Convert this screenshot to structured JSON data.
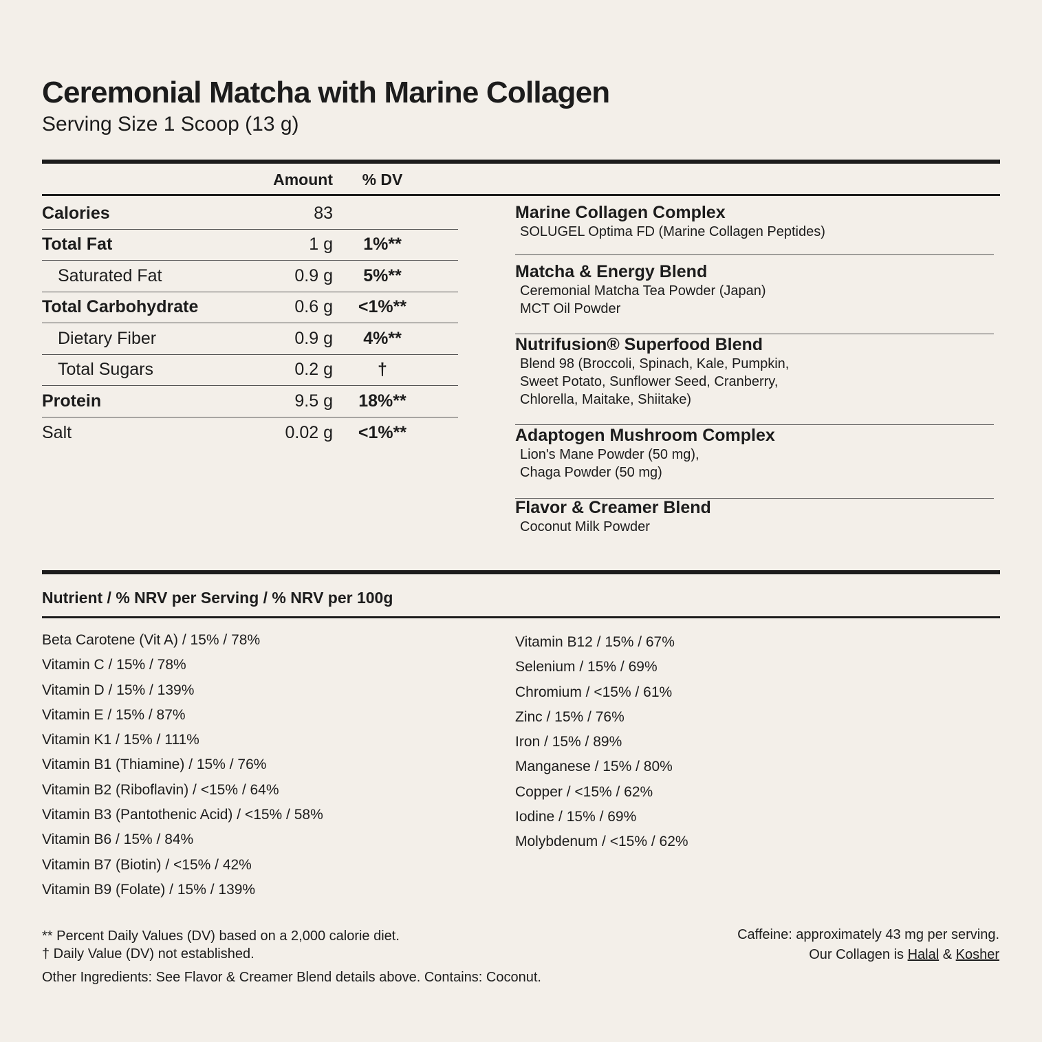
{
  "title": "Ceremonial Matcha with Marine Collagen",
  "serving_size": "Serving Size 1 Scoop (13 g)",
  "table": {
    "headers": {
      "amount": "Amount",
      "dv": "% DV"
    },
    "rows": [
      {
        "name": "Calories",
        "amount": "83",
        "dv": "",
        "style": "bold"
      },
      {
        "name": "Total Fat",
        "amount": "1 g",
        "dv": "1%**",
        "style": "bold"
      },
      {
        "name": "Saturated Fat",
        "amount": "0.9 g",
        "dv": "5%**",
        "style": "indent"
      },
      {
        "name": "Total Carbohydrate",
        "amount": "0.6 g",
        "dv": "<1%**",
        "style": "bold"
      },
      {
        "name": "Dietary Fiber",
        "amount": "0.9 g",
        "dv": "4%**",
        "style": "indent"
      },
      {
        "name": "Total Sugars",
        "amount": "0.2 g",
        "dv": "†",
        "style": "indent"
      },
      {
        "name": "Protein",
        "amount": "9.5 g",
        "dv": "18%**",
        "style": "bold"
      },
      {
        "name": "Salt",
        "amount": "0.02 g",
        "dv": "<1%**",
        "style": "plain"
      }
    ]
  },
  "blends": [
    {
      "title": "Marine Collagen Complex",
      "lines": [
        "SOLUGEL Optima FD (Marine Collagen Peptides)"
      ]
    },
    {
      "title": "Matcha & Energy Blend",
      "lines": [
        "Ceremonial Matcha Tea Powder (Japan)",
        "MCT Oil Powder"
      ]
    },
    {
      "title": "Nutrifusion® Superfood Blend",
      "lines": [
        "Blend 98 (Broccoli, Spinach, Kale, Pumpkin,",
        "Sweet Potato, Sunflower Seed, Cranberry,",
        "Chlorella, Maitake, Shiitake)"
      ]
    },
    {
      "title": "Adaptogen Mushroom Complex",
      "lines": [
        "Lion's Mane Powder (50 mg),",
        "Chaga Powder (50 mg)"
      ]
    },
    {
      "title": "Flavor & Creamer Blend",
      "lines": [
        "Coconut Milk Powder"
      ]
    }
  ],
  "nrv": {
    "heading": "Nutrient / % NRV per Serving / % NRV per 100g",
    "left": [
      "Beta Carotene (Vit A) / 15% / 78%",
      "Vitamin C / 15% / 78%",
      "Vitamin D / 15% / 139%",
      "Vitamin E / 15% / 87%",
      "Vitamin K1 / 15% / 111%",
      "Vitamin B1 (Thiamine) / 15% / 76%",
      "Vitamin B2 (Riboflavin) / <15% / 64%",
      "Vitamin B3 (Pantothenic Acid) / <15% / 58%",
      "Vitamin B6 / 15% / 84%",
      "Vitamin B7 (Biotin) / <15% / 42%",
      "Vitamin B9 (Folate) / 15% / 139%"
    ],
    "right": [
      "Vitamin B12 / 15% / 67%",
      "Selenium / 15% / 69%",
      "Chromium / <15% / 61%",
      "Zinc / 15% / 76%",
      "Iron / 15% / 89%",
      "Manganese / 15% / 80%",
      "Copper / <15% / 62%",
      "Iodine / 15% / 69%",
      "Molybdenum / <15% / 62%"
    ]
  },
  "footnotes": {
    "dv_note": "** Percent Daily Values (DV) based on a 2,000 calorie diet.",
    "dagger_note": "† Daily Value (DV) not established.",
    "other": "Other Ingredients: See Flavor & Creamer Blend details above. Contains: Coconut.",
    "caffeine": "Caffeine: approximately 43 mg per serving.",
    "collagen_prefix": "Our Collagen is ",
    "halal": "Halal",
    "amp": " & ",
    "kosher": "Kosher"
  }
}
